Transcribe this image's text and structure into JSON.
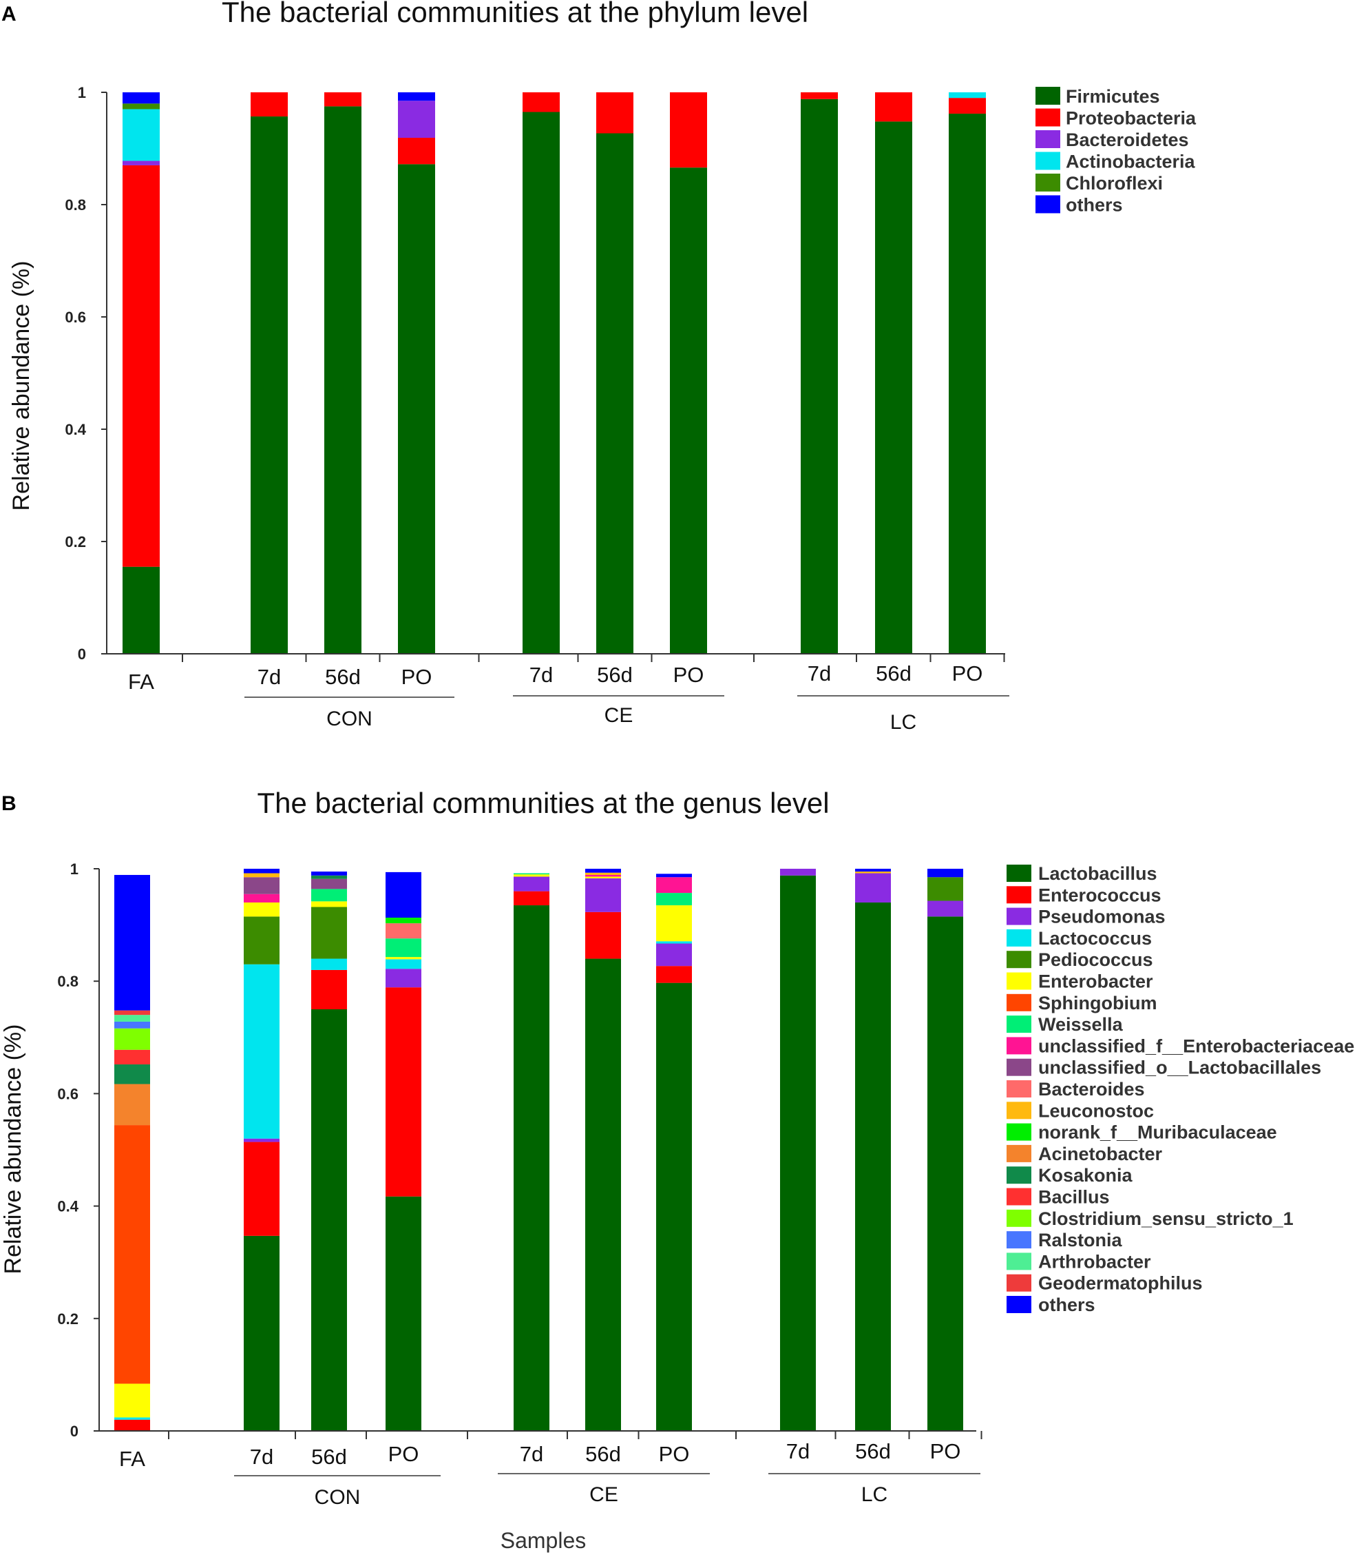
{
  "chart_data": [
    {
      "panel": "A",
      "type": "bar",
      "stacked": true,
      "title": "The bacterial communities at the phylum level",
      "ylabel": "Relative abundance (%)",
      "xlabel": "",
      "ylim": [
        0,
        1
      ],
      "yticks": [
        "0",
        "0.2",
        "0.4",
        "0.6",
        "0.8",
        "1"
      ],
      "categories": [
        "FA",
        "7d",
        "56d",
        "PO",
        "7d",
        "56d",
        "PO",
        "7d",
        "56d",
        "PO"
      ],
      "groups": [
        {
          "label": "CON",
          "from": 1,
          "to": 3
        },
        {
          "label": "CE",
          "from": 4,
          "to": 6
        },
        {
          "label": "LC",
          "from": 7,
          "to": 9
        }
      ],
      "legend_position": "right",
      "series": [
        {
          "name": "Firmicutes",
          "color": "#006400",
          "values": [
            0.155,
            0.957,
            0.975,
            0.872,
            0.965,
            0.927,
            0.866,
            0.988,
            0.948,
            0.962
          ]
        },
        {
          "name": "Proteobacteria",
          "color": "#ff0000",
          "values": [
            0.715,
            0.043,
            0.025,
            0.047,
            0.035,
            0.073,
            0.134,
            0.012,
            0.052,
            0.028
          ]
        },
        {
          "name": "Bacteroidetes",
          "color": "#8a2be2",
          "values": [
            0.008,
            0.0,
            0.0,
            0.066,
            0.0,
            0.0,
            0.0,
            0.0,
            0.0,
            0.0
          ]
        },
        {
          "name": "Actinobacteria",
          "color": "#00e5ee",
          "values": [
            0.092,
            0.0,
            0.0,
            0.0,
            0.0,
            0.0,
            0.0,
            0.0,
            0.0,
            0.01
          ]
        },
        {
          "name": "Chloroflexi",
          "color": "#3c8c00",
          "values": [
            0.01,
            0.0,
            0.0,
            0.0,
            0.0,
            0.0,
            0.0,
            0.0,
            0.0,
            0.0
          ]
        },
        {
          "name": "others",
          "color": "#0000ff",
          "values": [
            0.02,
            0.0,
            0.0,
            0.015,
            0.0,
            0.0,
            0.0,
            0.0,
            0.0,
            0.0
          ]
        }
      ]
    },
    {
      "panel": "B",
      "type": "bar",
      "stacked": true,
      "title": "The bacterial communities at the genus level",
      "ylabel": "Relative abundance (%)",
      "xlabel": "Samples",
      "ylim": [
        0,
        1
      ],
      "yticks": [
        "0",
        "0.2",
        "0.4",
        "0.6",
        "0.8",
        "1"
      ],
      "categories": [
        "FA",
        "7d",
        "56d",
        "PO",
        "7d",
        "56d",
        "PO",
        "7d",
        "56d",
        "PO"
      ],
      "groups": [
        {
          "label": "CON",
          "from": 1,
          "to": 3
        },
        {
          "label": "CE",
          "from": 4,
          "to": 6
        },
        {
          "label": "LC",
          "from": 7,
          "to": 9
        }
      ],
      "legend_position": "right",
      "series": [
        {
          "name": "Lactobacillus",
          "color": "#006400",
          "values": [
            0.0,
            0.347,
            0.75,
            0.417,
            0.935,
            0.84,
            0.797,
            0.988,
            0.94,
            0.915
          ]
        },
        {
          "name": "Enterococcus",
          "color": "#ff0000",
          "values": [
            0.02,
            0.167,
            0.07,
            0.372,
            0.025,
            0.083,
            0.03,
            0.0,
            0.0,
            0.0
          ]
        },
        {
          "name": "Pseudomonas",
          "color": "#8a2be2",
          "values": [
            0.0,
            0.006,
            0.0,
            0.033,
            0.026,
            0.06,
            0.04,
            0.012,
            0.052,
            0.028
          ]
        },
        {
          "name": "Lactococcus",
          "color": "#00e5ee",
          "values": [
            0.004,
            0.31,
            0.02,
            0.017,
            0.0,
            0.0,
            0.004,
            0.0,
            0.0,
            0.0
          ]
        },
        {
          "name": "Pediococcus",
          "color": "#3c8c00",
          "values": [
            0.0,
            0.085,
            0.092,
            0.0,
            0.0,
            0.0,
            0.0,
            0.0,
            0.0,
            0.042
          ]
        },
        {
          "name": "Enterobacter",
          "color": "#ffff00",
          "values": [
            0.06,
            0.025,
            0.01,
            0.004,
            0.004,
            0.003,
            0.064,
            0.0,
            0.0,
            0.0
          ]
        },
        {
          "name": "Sphingobium",
          "color": "#ff4500",
          "values": [
            0.46,
            0.0,
            0.0,
            0.0,
            0.0,
            0.0,
            0.0,
            0.0,
            0.0,
            0.0
          ]
        },
        {
          "name": "Weissella",
          "color": "#00ee76",
          "values": [
            0.0,
            0.0,
            0.022,
            0.033,
            0.002,
            0.0,
            0.022,
            0.0,
            0.0,
            0.0
          ]
        },
        {
          "name": "unclassified_f__Enterobacteriaceae",
          "color": "#ff1493",
          "values": [
            0.0,
            0.015,
            0.0,
            0.0,
            0.0,
            0.003,
            0.028,
            0.0,
            0.0,
            0.0
          ]
        },
        {
          "name": "unclassified_o__Lactobacillales",
          "color": "#8b4789",
          "values": [
            0.0,
            0.03,
            0.018,
            0.0,
            0.0,
            0.0,
            0.0,
            0.0,
            0.0,
            0.0
          ]
        },
        {
          "name": "Bacteroides",
          "color": "#ff6a6a",
          "values": [
            0.0,
            0.0,
            0.0,
            0.027,
            0.0,
            0.0,
            0.0,
            0.0,
            0.0,
            0.0
          ]
        },
        {
          "name": "Leuconostoc",
          "color": "#ffb90f",
          "values": [
            0.0,
            0.007,
            0.0,
            0.0,
            0.0,
            0.004,
            0.0,
            0.0,
            0.003,
            0.0
          ]
        },
        {
          "name": "norank_f__Muribaculaceae",
          "color": "#00ee00",
          "values": [
            0.0,
            0.0,
            0.0,
            0.01,
            0.0,
            0.0,
            0.0,
            0.0,
            0.0,
            0.0
          ]
        },
        {
          "name": "Acinetobacter",
          "color": "#f4832c",
          "values": [
            0.073,
            0.0,
            0.0,
            0.0,
            0.0,
            0.0,
            0.0,
            0.0,
            0.0,
            0.0
          ]
        },
        {
          "name": "Kosakonia",
          "color": "#108a4a",
          "values": [
            0.035,
            0.0,
            0.006,
            0.0,
            0.0,
            0.0,
            0.0,
            0.0,
            0.0,
            0.0
          ]
        },
        {
          "name": "Bacillus",
          "color": "#ff3030",
          "values": [
            0.026,
            0.0,
            0.0,
            0.0,
            0.0,
            0.0,
            0.0,
            0.0,
            0.0,
            0.0
          ]
        },
        {
          "name": "Clostridium_sensu_stricto_1",
          "color": "#7fff00",
          "values": [
            0.038,
            0.0,
            0.0,
            0.0,
            0.0,
            0.0,
            0.0,
            0.0,
            0.0,
            0.0
          ]
        },
        {
          "name": "Ralstonia",
          "color": "#4876ff",
          "values": [
            0.012,
            0.0,
            0.0,
            0.0,
            0.0,
            0.0,
            0.0,
            0.0,
            0.0,
            0.0
          ]
        },
        {
          "name": "Arthrobacter",
          "color": "#4eee94",
          "values": [
            0.012,
            0.0,
            0.0,
            0.0,
            0.0,
            0.0,
            0.0,
            0.0,
            0.0,
            0.0
          ]
        },
        {
          "name": "Geodermatophilus",
          "color": "#ee3b3b",
          "values": [
            0.008,
            0.0,
            0.0,
            0.0,
            0.0,
            0.0,
            0.0,
            0.0,
            0.0,
            0.0
          ]
        },
        {
          "name": "others",
          "color": "#0000ff",
          "values": [
            0.241,
            0.008,
            0.007,
            0.081,
            0.0,
            0.007,
            0.006,
            0.0,
            0.005,
            0.015
          ]
        }
      ]
    }
  ]
}
